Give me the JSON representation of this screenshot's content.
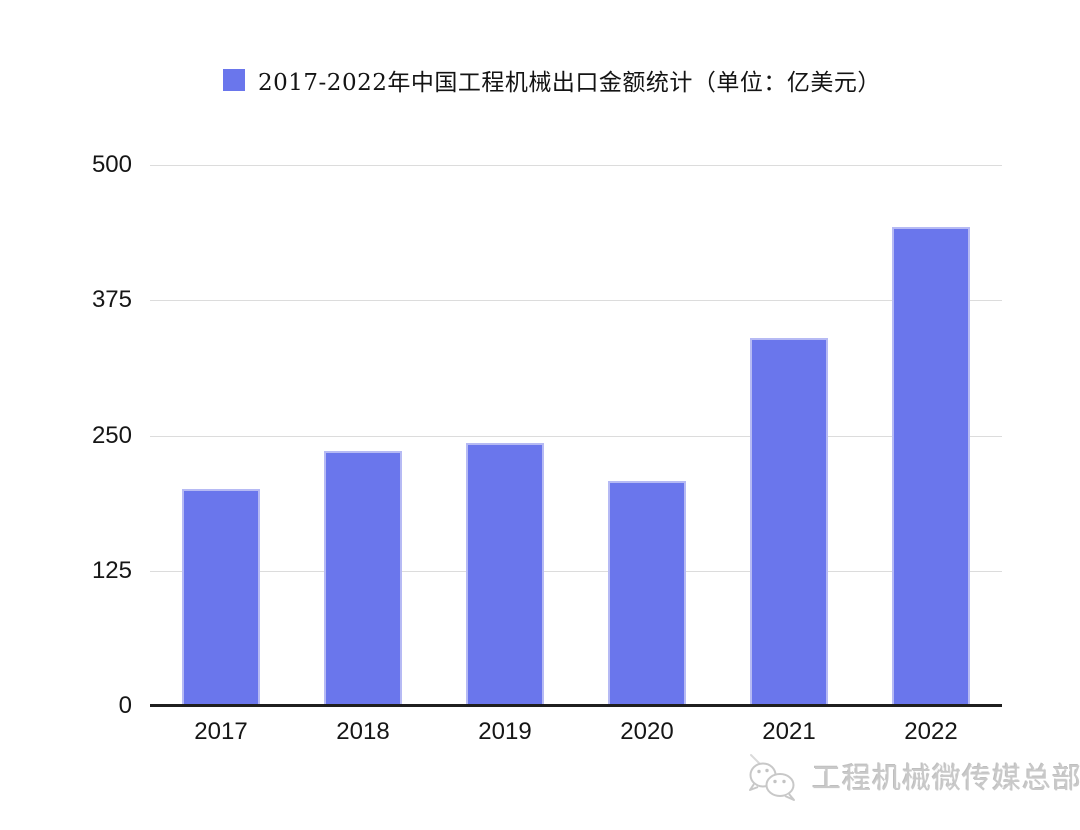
{
  "page": {
    "background": "#ffffff"
  },
  "legend": {
    "swatch_color": "#6a76ec",
    "label": "2017-2022年中国工程机械出口金额统计（单位：亿美元）"
  },
  "chart_data": {
    "type": "bar",
    "title": "2017-2022年中国工程机械出口金额统计（单位：亿美元）",
    "series": [
      {
        "name": "2017-2022年中国工程机械出口金额统计（单位：亿美元）",
        "values": [
          201,
          236,
          243,
          208,
          340,
          443
        ]
      }
    ],
    "categories": [
      "2017",
      "2018",
      "2019",
      "2020",
      "2021",
      "2022"
    ],
    "unit": "亿美元",
    "xlabel": "",
    "ylabel": "",
    "ylim": [
      0,
      500
    ],
    "yticks": [
      0,
      125,
      250,
      375,
      500
    ],
    "grid": true,
    "legend_position": "top",
    "bar_color": "#6a76ec",
    "bar_border_color": "#b6baf4",
    "gridline_color": "#dcdcdc",
    "axis_line_color": "#1f1f1f"
  },
  "watermark": {
    "icon": "wechat-icon",
    "text": "工程机械微传媒总部"
  }
}
